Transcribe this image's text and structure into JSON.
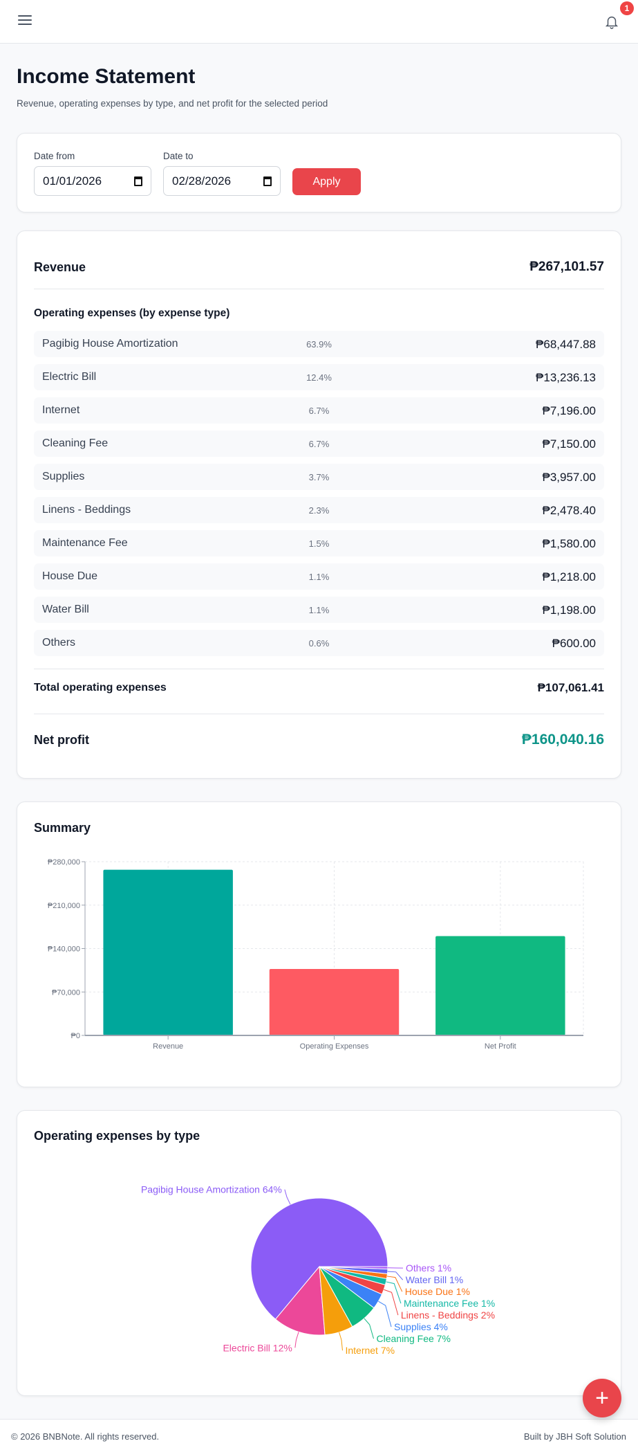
{
  "header": {
    "menu_icon": "hamburger-icon",
    "bell_icon": "bell-icon",
    "notification_count": "1"
  },
  "page": {
    "title": "Income Statement",
    "subtitle": "Revenue, operating expenses by type, and net profit for the selected period"
  },
  "filters": {
    "date_from_label": "Date from",
    "date_from": "01/01/2026",
    "date_to_label": "Date to",
    "date_to": "02/28/2026",
    "apply": "Apply"
  },
  "statement": {
    "revenue_label": "Revenue",
    "revenue": "₱267,101.57",
    "opex_heading": "Operating expenses (by expense type)",
    "expenses": [
      {
        "name": "Pagibig House Amortization",
        "pct": "63.9%",
        "amount": "₱68,447.88"
      },
      {
        "name": "Electric Bill",
        "pct": "12.4%",
        "amount": "₱13,236.13"
      },
      {
        "name": "Internet",
        "pct": "6.7%",
        "amount": "₱7,196.00"
      },
      {
        "name": "Cleaning Fee",
        "pct": "6.7%",
        "amount": "₱7,150.00"
      },
      {
        "name": "Supplies",
        "pct": "3.7%",
        "amount": "₱3,957.00"
      },
      {
        "name": "Linens - Beddings",
        "pct": "2.3%",
        "amount": "₱2,478.40"
      },
      {
        "name": "Maintenance Fee",
        "pct": "1.5%",
        "amount": "₱1,580.00"
      },
      {
        "name": "House Due",
        "pct": "1.1%",
        "amount": "₱1,218.00"
      },
      {
        "name": "Water Bill",
        "pct": "1.1%",
        "amount": "₱1,198.00"
      },
      {
        "name": "Others",
        "pct": "0.6%",
        "amount": "₱600.00"
      }
    ],
    "total_label": "Total operating expenses",
    "total": "₱107,061.41",
    "net_label": "Net profit",
    "net": "₱160,040.16",
    "net_color": "#0d9488"
  },
  "summary": {
    "title": "Summary"
  },
  "pie_section": {
    "title": "Operating expenses by type"
  },
  "chart_data": [
    {
      "type": "bar",
      "categories": [
        "Revenue",
        "Operating Expenses",
        "Net Profit"
      ],
      "values": [
        267101.57,
        107061.41,
        160040.16
      ],
      "colors": [
        "#00a79b",
        "#fe5a62",
        "#10b981"
      ],
      "ylim": [
        0,
        280000
      ],
      "yticks": [
        "₱0",
        "₱70,000",
        "₱140,000",
        "₱210,000",
        "₱280,000"
      ],
      "ytick_values": [
        0,
        70000,
        140000,
        210000,
        280000
      ],
      "grid": true
    },
    {
      "type": "pie",
      "categories": [
        "Pagibig House Amortization",
        "Electric Bill",
        "Internet",
        "Cleaning Fee",
        "Supplies",
        "Linens - Beddings",
        "Maintenance Fee",
        "House Due",
        "Water Bill",
        "Others"
      ],
      "values": [
        68447.88,
        13236.13,
        7196.0,
        7150.0,
        3957.0,
        2478.4,
        1580.0,
        1218.0,
        1198.0,
        600.0
      ],
      "labels": [
        "Pagibig House Amortization 64%",
        "Electric Bill 12%",
        "Internet 7%",
        "Cleaning Fee 7%",
        "Supplies 4%",
        "Linens - Beddings 2%",
        "Maintenance Fee 1%",
        "House Due 1%",
        "Water Bill 1%",
        "Others 1%"
      ],
      "colors": [
        "#8b5cf6",
        "#ec4899",
        "#f59e0b",
        "#10b981",
        "#3b82f6",
        "#ef4444",
        "#14b8a6",
        "#f97316",
        "#6366f1",
        "#a855f7"
      ]
    }
  ],
  "fab": {
    "label": "+",
    "icon": "plus-icon"
  },
  "footer": {
    "copyright": "© 2026 BNBNote. All rights reserved.",
    "credit": "Built by JBH Soft Solution"
  }
}
